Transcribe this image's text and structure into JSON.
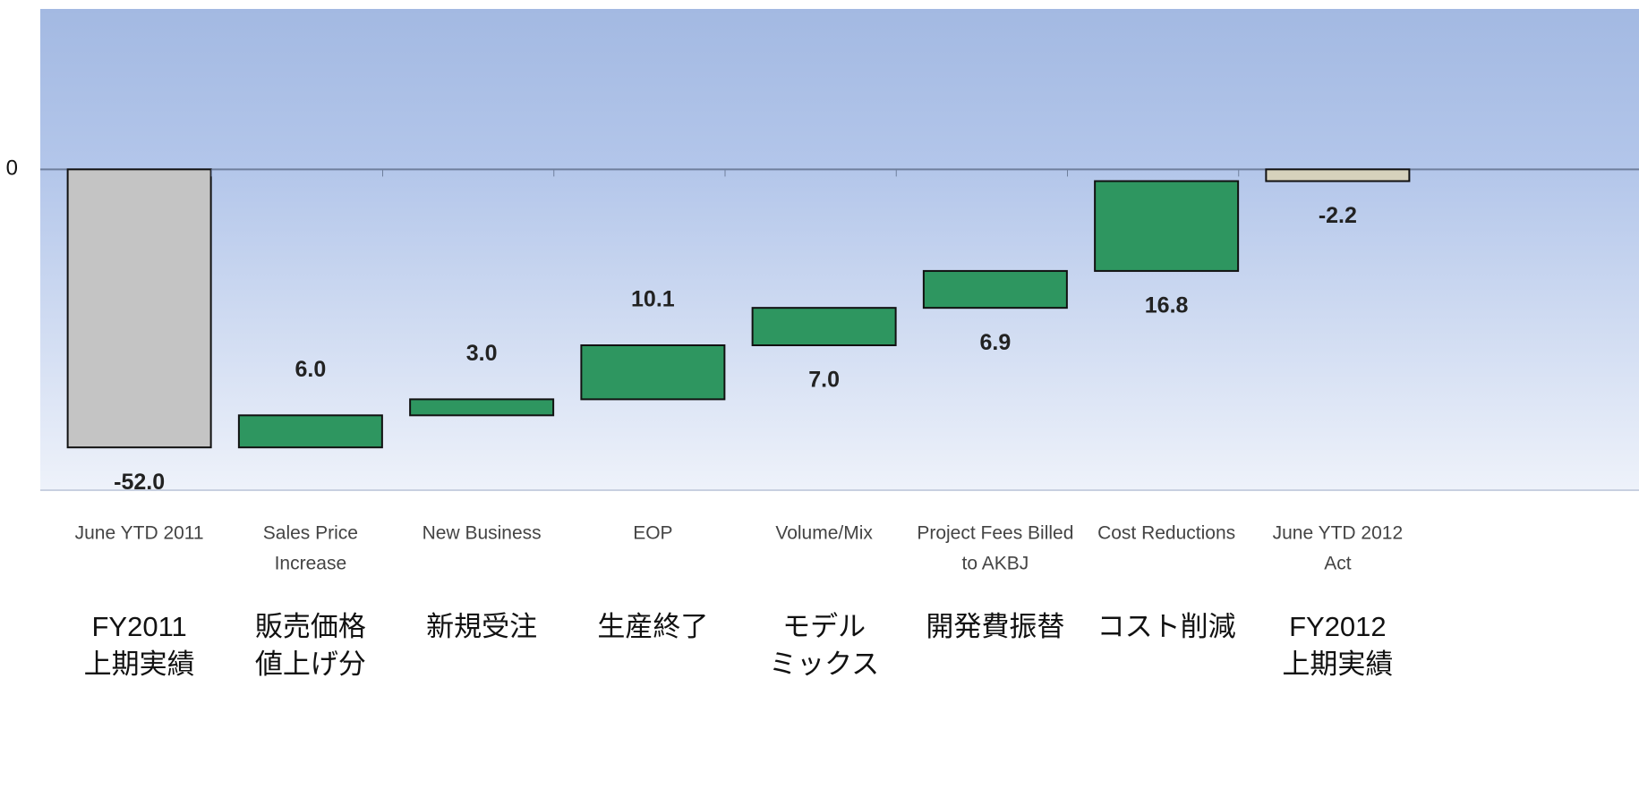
{
  "chart_data": {
    "type": "waterfall",
    "categories": [
      [
        "June YTD 2011"
      ],
      [
        "Sales Price",
        "Increase"
      ],
      [
        "New Business"
      ],
      [
        "EOP"
      ],
      [
        "Volume/Mix"
      ],
      [
        "Project Fees Billed",
        "to AKBJ"
      ],
      [
        "Cost Reductions"
      ],
      [
        "June YTD 2012",
        "Act"
      ]
    ],
    "categories_ja": [
      [
        "FY2011",
        "上期実績"
      ],
      [
        "販売価格",
        "値上げ分"
      ],
      [
        "新規受注"
      ],
      [
        "生産終了"
      ],
      [
        "モデル",
        "ミックス"
      ],
      [
        "開発費振替"
      ],
      [
        "コスト削減"
      ],
      [
        "FY2012",
        "上期実績"
      ]
    ],
    "values": [
      -52.0,
      6.0,
      3.0,
      10.1,
      7.0,
      6.9,
      16.8,
      -2.2
    ],
    "value_labels": [
      "-52.0",
      "6.0",
      "3.0",
      "10.1",
      "7.0",
      "6.9",
      "16.8",
      "-2.2"
    ],
    "colors": [
      "#c4c4c4",
      "#2e9660",
      "#2e9660",
      "#2e9660",
      "#2e9660",
      "#2e9660",
      "#2e9660",
      "#d6d2bc"
    ],
    "ylim": [
      -60,
      30
    ],
    "yticks": [
      0
    ],
    "grid": true
  }
}
